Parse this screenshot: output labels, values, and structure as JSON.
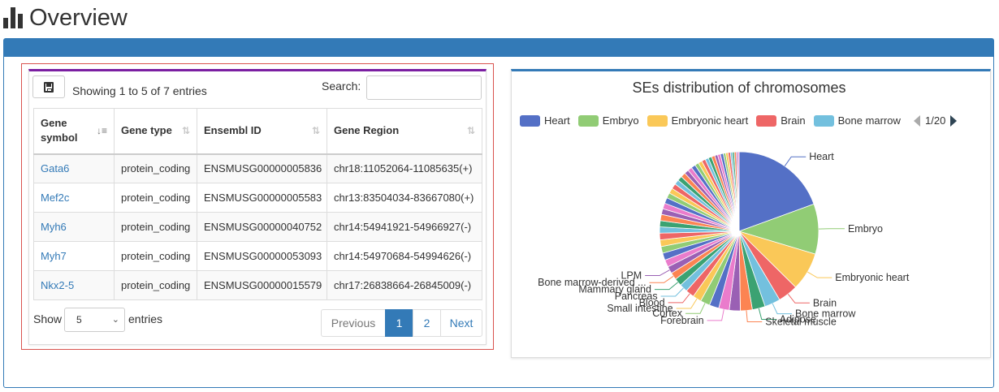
{
  "header": {
    "title": "Overview",
    "icon": "bar-chart-icon"
  },
  "table_panel": {
    "info_text": "Showing 1 to 5 of 7 entries",
    "search_label": "Search:",
    "search_value": "",
    "columns": [
      {
        "label": "Gene symbol",
        "sorted": true
      },
      {
        "label": "Gene type",
        "sorted": false
      },
      {
        "label": "Ensembl ID",
        "sorted": false
      },
      {
        "label": "Gene Region",
        "sorted": false
      }
    ],
    "rows": [
      {
        "symbol": "Gata6",
        "type": "protein_coding",
        "ensembl": "ENSMUSG00000005836",
        "region": "chr18:11052064-11085635(+)"
      },
      {
        "symbol": "Mef2c",
        "type": "protein_coding",
        "ensembl": "ENSMUSG00000005583",
        "region": "chr13:83504034-83667080(+)"
      },
      {
        "symbol": "Myh6",
        "type": "protein_coding",
        "ensembl": "ENSMUSG00000040752",
        "region": "chr14:54941921-54966927(-)"
      },
      {
        "symbol": "Myh7",
        "type": "protein_coding",
        "ensembl": "ENSMUSG00000053093",
        "region": "chr14:54970684-54994626(-)"
      },
      {
        "symbol": "Nkx2-5",
        "type": "protein_coding",
        "ensembl": "ENSMUSG00000015579",
        "region": "chr17:26838664-26845009(-)"
      }
    ],
    "length": {
      "show_label": "Show",
      "value": "5",
      "entries_label": "entries"
    },
    "pagination": {
      "previous": "Previous",
      "pages": [
        "1",
        "2"
      ],
      "active": "1",
      "next": "Next"
    }
  },
  "legend_pager": "1/20",
  "chart_data": {
    "type": "pie",
    "title": "SEs distribution of chromosomes",
    "legend": [
      "Heart",
      "Embryo",
      "Embryonic heart",
      "Brain",
      "Bone marrow"
    ],
    "legend_colors": [
      "#5470c6",
      "#91cc75",
      "#fac858",
      "#ee6666",
      "#73c0de"
    ],
    "legend_placement": "top",
    "series": [
      {
        "name": "Heart",
        "value": 20.0
      },
      {
        "name": "Embryo",
        "value": 10.5
      },
      {
        "name": "Embryonic heart",
        "value": 8.0
      },
      {
        "name": "Brain",
        "value": 4.2
      },
      {
        "name": "Bone marrow",
        "value": 3.3
      },
      {
        "name": "Adipose",
        "value": 2.7
      },
      {
        "name": "Skeletal muscle",
        "value": 2.5
      },
      {
        "name": "",
        "value": 2.3
      },
      {
        "name": "Forebrain",
        "value": 2.2
      },
      {
        "name": "",
        "value": 2.0
      },
      {
        "name": "Cortex",
        "value": 2.0
      },
      {
        "name": "Small intestine",
        "value": 1.8
      },
      {
        "name": "Blood",
        "value": 1.8
      },
      {
        "name": "Pancreas",
        "value": 1.7
      },
      {
        "name": "Mammary gland",
        "value": 1.6
      },
      {
        "name": "Bone marrow-derived ...",
        "value": 1.5
      },
      {
        "name": "LPM",
        "value": 1.5
      },
      {
        "name": "",
        "value": 1.5
      },
      {
        "name": "",
        "value": 1.5
      },
      {
        "name": "",
        "value": 1.4
      },
      {
        "name": "",
        "value": 1.4
      },
      {
        "name": "",
        "value": 1.4
      },
      {
        "name": "",
        "value": 1.3
      },
      {
        "name": "",
        "value": 1.3
      },
      {
        "name": "",
        "value": 1.3
      },
      {
        "name": "",
        "value": 1.2
      },
      {
        "name": "",
        "value": 1.2
      },
      {
        "name": "",
        "value": 1.2
      },
      {
        "name": "",
        "value": 1.1
      },
      {
        "name": "",
        "value": 1.1
      },
      {
        "name": "",
        "value": 1.1
      },
      {
        "name": "",
        "value": 1.0
      },
      {
        "name": "",
        "value": 1.0
      },
      {
        "name": "",
        "value": 1.0
      },
      {
        "name": "",
        "value": 0.9
      },
      {
        "name": "",
        "value": 0.9
      },
      {
        "name": "",
        "value": 0.9
      },
      {
        "name": "",
        "value": 0.8
      },
      {
        "name": "",
        "value": 0.8
      },
      {
        "name": "",
        "value": 0.8
      },
      {
        "name": "",
        "value": 0.7
      },
      {
        "name": "",
        "value": 0.7
      },
      {
        "name": "",
        "value": 0.7
      },
      {
        "name": "",
        "value": 0.6
      },
      {
        "name": "",
        "value": 0.6
      },
      {
        "name": "",
        "value": 0.6
      },
      {
        "name": "",
        "value": 0.5
      },
      {
        "name": "",
        "value": 0.5
      },
      {
        "name": "",
        "value": 0.5
      },
      {
        "name": "",
        "value": 0.4
      },
      {
        "name": "",
        "value": 0.4
      },
      {
        "name": "",
        "value": 0.4
      },
      {
        "name": "",
        "value": 0.3
      },
      {
        "name": "",
        "value": 0.3
      }
    ],
    "palette": [
      "#5470c6",
      "#91cc75",
      "#fac858",
      "#ee6666",
      "#73c0de",
      "#3ba272",
      "#fc8452",
      "#9a60b4",
      "#ea7ccc"
    ]
  }
}
